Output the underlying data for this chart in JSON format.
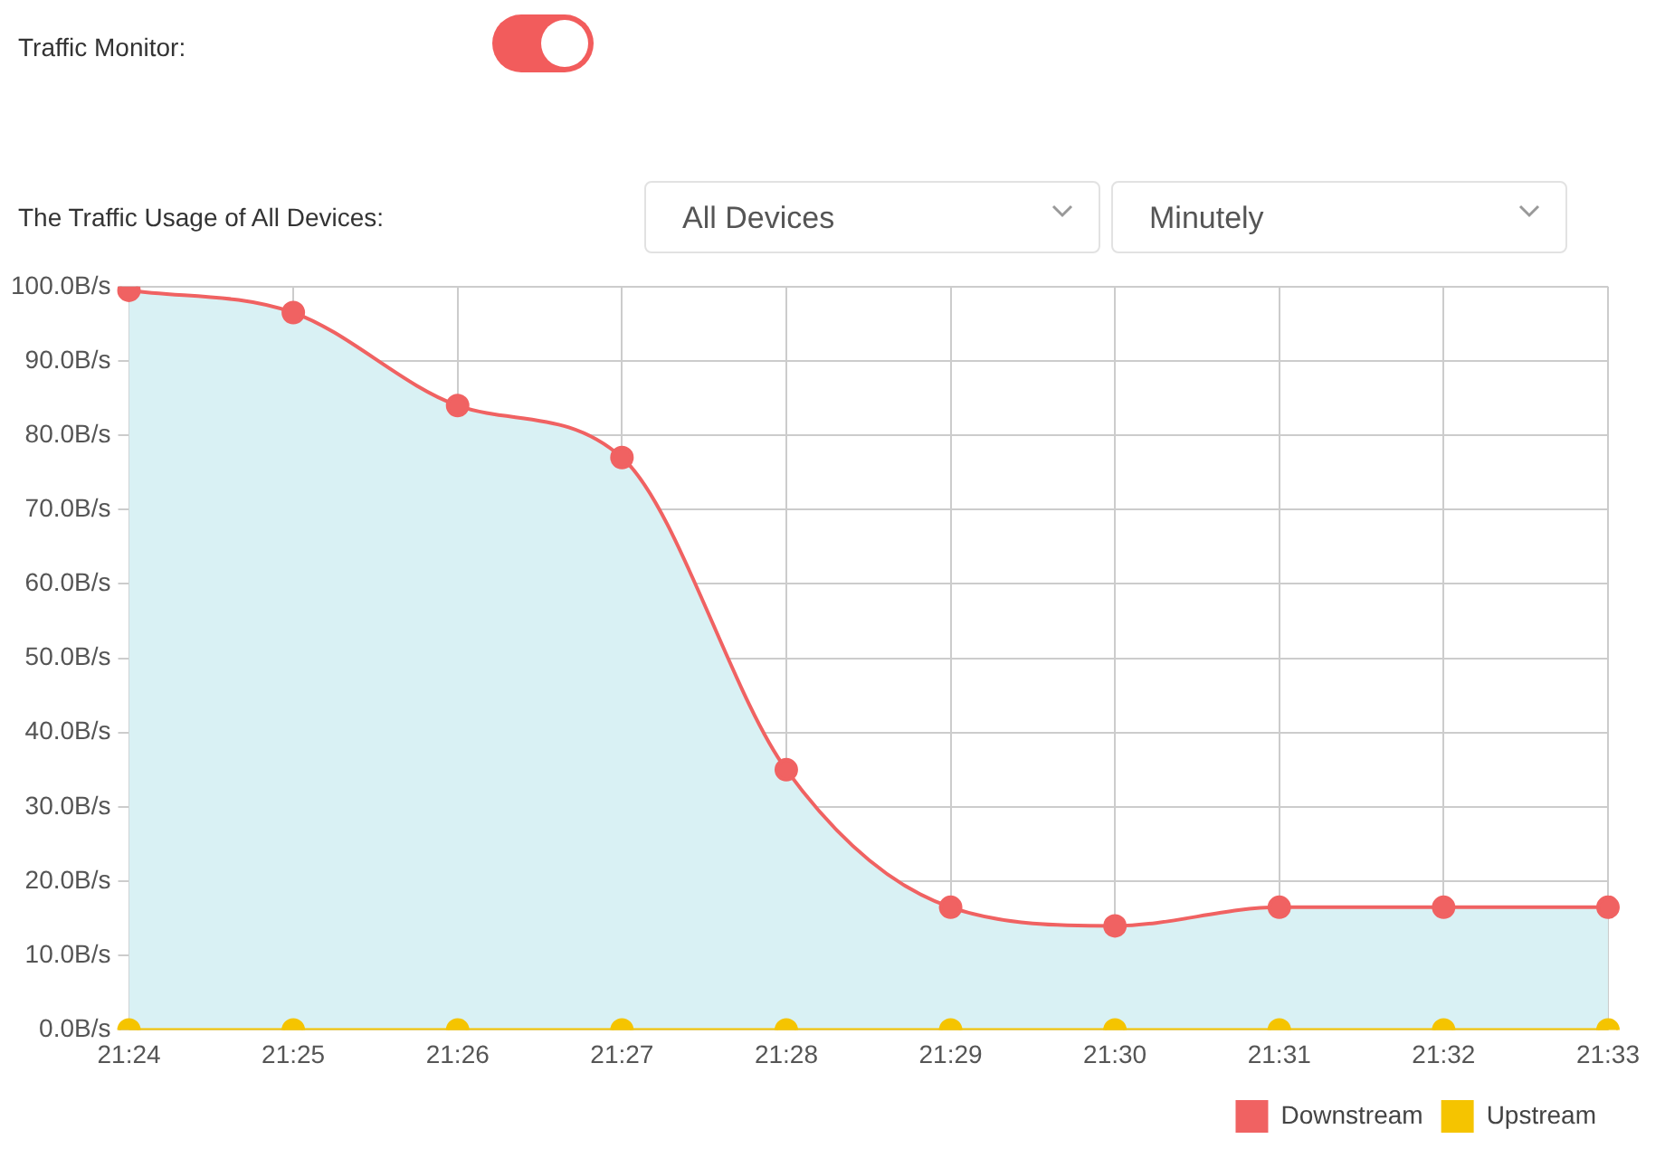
{
  "chart_data": {
    "type": "line",
    "title": "The Traffic Usage of All Devices:",
    "annotations": [
      "Traffic Monitor:",
      "All Devices",
      "Minutely"
    ],
    "categories": [
      "21:24",
      "21:25",
      "21:26",
      "21:27",
      "21:28",
      "21:29",
      "21:30",
      "21:31",
      "21:32",
      "21:33"
    ],
    "series": [
      {
        "name": "Downstream",
        "type": "area",
        "color": "#f06262",
        "values": [
          99.5,
          96.5,
          84,
          77,
          35,
          16.5,
          14,
          16.5,
          16.5,
          16.5
        ]
      },
      {
        "name": "Upstream",
        "type": "line",
        "color": "#f5c400",
        "values": [
          0,
          0,
          0,
          0,
          0,
          0,
          0,
          0,
          0,
          0
        ]
      }
    ],
    "ylim": [
      0,
      100
    ],
    "yticks": [
      {
        "value": 0,
        "label": "0.0B/s"
      },
      {
        "value": 10,
        "label": "10.0B/s"
      },
      {
        "value": 20,
        "label": "20.0B/s"
      },
      {
        "value": 30,
        "label": "30.0B/s"
      },
      {
        "value": 40,
        "label": "40.0B/s"
      },
      {
        "value": 50,
        "label": "50.0B/s"
      },
      {
        "value": 60,
        "label": "60.0B/s"
      },
      {
        "value": 70,
        "label": "70.0B/s"
      },
      {
        "value": 80,
        "label": "80.0B/s"
      },
      {
        "value": 90,
        "label": "90.0B/s"
      },
      {
        "value": 100,
        "label": "100.0B/s"
      }
    ],
    "grid": true,
    "legend": "bottom right",
    "marker": "circle"
  }
}
